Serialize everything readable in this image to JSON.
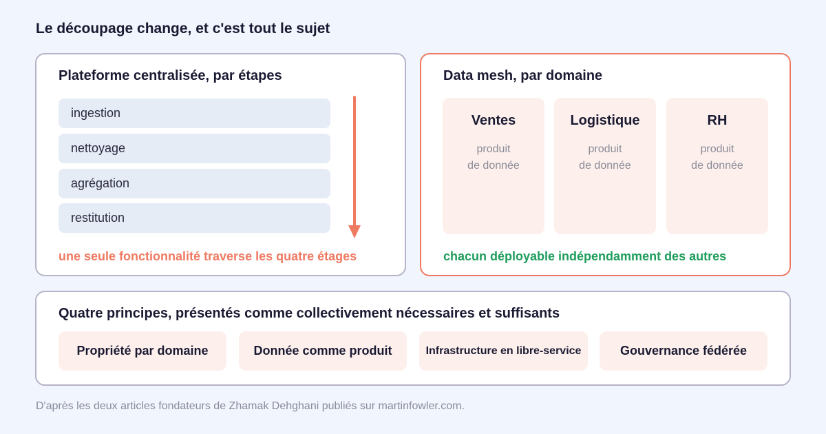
{
  "title": "Le découpage change, et c'est tout le sujet",
  "left_panel": {
    "title": "Plateforme centralisée, par étapes",
    "stages": [
      "ingestion",
      "nettoyage",
      "agrégation",
      "restitution"
    ],
    "note": "une seule fonctionnalité traverse les quatre étages"
  },
  "right_panel": {
    "title": "Data mesh, par domaine",
    "domains": [
      {
        "name": "Ventes",
        "desc_line1": "produit",
        "desc_line2": "de donnée"
      },
      {
        "name": "Logistique",
        "desc_line1": "produit",
        "desc_line2": "de donnée"
      },
      {
        "name": "RH",
        "desc_line1": "produit",
        "desc_line2": "de donnée"
      }
    ],
    "note": "chacun déployable indépendamment des autres"
  },
  "bottom_panel": {
    "title": "Quatre principes, présentés comme collectivement nécessaires et suffisants",
    "principles": [
      "Propriété par domaine",
      "Donnée comme produit",
      "Infrastructure en libre-service",
      "Gouvernance fédérée"
    ]
  },
  "footer": "D'après les deux articles fondateurs de Zhamak Dehghani publiés sur martinfowler.com.",
  "colors": {
    "accent_orange": "#ef7a62",
    "accent_green": "#1f9d5c",
    "stage_fill": "#e6ecf6",
    "domain_fill": "#fdf0ec"
  }
}
